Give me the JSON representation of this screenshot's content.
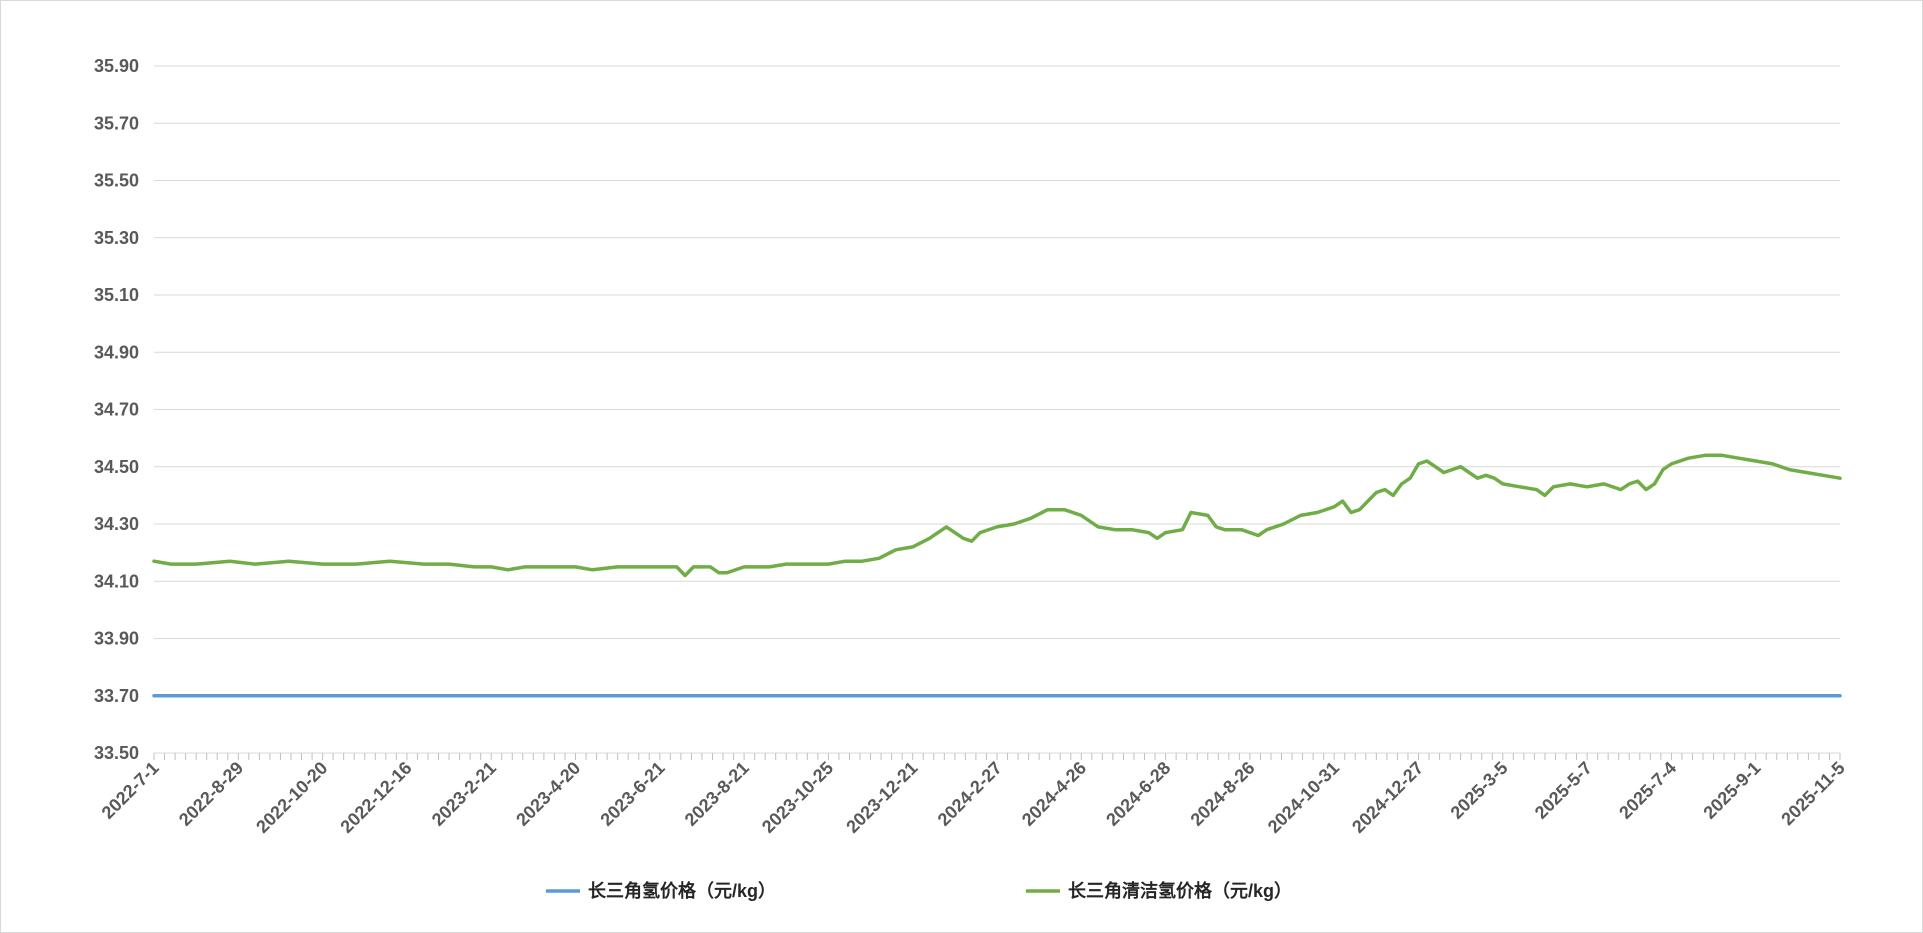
{
  "chart_data": {
    "type": "line",
    "title": "",
    "xlabel": "",
    "ylabel": "",
    "ylim": [
      33.5,
      35.9
    ],
    "y_ticks": [
      "33.50",
      "33.70",
      "33.90",
      "34.10",
      "34.30",
      "34.50",
      "34.70",
      "34.90",
      "35.10",
      "35.30",
      "35.50",
      "35.70",
      "35.90"
    ],
    "x_tick_labels": [
      "2022-7-1",
      "2022-8-29",
      "2022-10-20",
      "2022-12-16",
      "2023-2-21",
      "2023-4-20",
      "2023-6-21",
      "2023-8-21",
      "2023-10-25",
      "2023-12-21",
      "2024-2-27",
      "2024-4-26",
      "2024-6-28",
      "2024-8-26",
      "2024-10-31",
      "2024-12-27",
      "2025-3-5",
      "2025-5-7",
      "2025-7-4",
      "2025-9-1",
      "2025-11-5"
    ],
    "grid": true,
    "legend_position": "bottom",
    "series": [
      {
        "name": "长三角氢价格（元/kg）",
        "color": "#5b9bd5",
        "points": [
          [
            0,
            33.7
          ],
          [
            1,
            33.7
          ]
        ]
      },
      {
        "name": "长三角清洁氢价格（元/kg）",
        "color": "#70ad47",
        "points": [
          [
            0.0,
            34.17
          ],
          [
            0.01,
            34.16
          ],
          [
            0.025,
            34.16
          ],
          [
            0.045,
            34.17
          ],
          [
            0.06,
            34.16
          ],
          [
            0.08,
            34.17
          ],
          [
            0.1,
            34.16
          ],
          [
            0.12,
            34.16
          ],
          [
            0.14,
            34.17
          ],
          [
            0.16,
            34.16
          ],
          [
            0.175,
            34.16
          ],
          [
            0.19,
            34.15
          ],
          [
            0.2,
            34.15
          ],
          [
            0.21,
            34.14
          ],
          [
            0.22,
            34.15
          ],
          [
            0.24,
            34.15
          ],
          [
            0.25,
            34.15
          ],
          [
            0.26,
            34.14
          ],
          [
            0.275,
            34.15
          ],
          [
            0.29,
            34.15
          ],
          [
            0.3,
            34.15
          ],
          [
            0.31,
            34.15
          ],
          [
            0.315,
            34.12
          ],
          [
            0.32,
            34.15
          ],
          [
            0.33,
            34.15
          ],
          [
            0.335,
            34.13
          ],
          [
            0.34,
            34.13
          ],
          [
            0.35,
            34.15
          ],
          [
            0.365,
            34.15
          ],
          [
            0.375,
            34.16
          ],
          [
            0.39,
            34.16
          ],
          [
            0.4,
            34.16
          ],
          [
            0.41,
            34.17
          ],
          [
            0.42,
            34.17
          ],
          [
            0.43,
            34.18
          ],
          [
            0.44,
            34.21
          ],
          [
            0.45,
            34.22
          ],
          [
            0.46,
            34.25
          ],
          [
            0.465,
            34.27
          ],
          [
            0.47,
            34.29
          ],
          [
            0.475,
            34.27
          ],
          [
            0.48,
            34.25
          ],
          [
            0.485,
            34.24
          ],
          [
            0.49,
            34.27
          ],
          [
            0.5,
            34.29
          ],
          [
            0.51,
            34.3
          ],
          [
            0.52,
            34.32
          ],
          [
            0.53,
            34.35
          ],
          [
            0.54,
            34.35
          ],
          [
            0.55,
            34.33
          ],
          [
            0.56,
            34.29
          ],
          [
            0.57,
            34.28
          ],
          [
            0.58,
            34.28
          ],
          [
            0.59,
            34.27
          ],
          [
            0.595,
            34.25
          ],
          [
            0.6,
            34.27
          ],
          [
            0.61,
            34.28
          ],
          [
            0.615,
            34.34
          ],
          [
            0.625,
            34.33
          ],
          [
            0.63,
            34.29
          ],
          [
            0.635,
            34.28
          ],
          [
            0.645,
            34.28
          ],
          [
            0.655,
            34.26
          ],
          [
            0.66,
            34.28
          ],
          [
            0.67,
            34.3
          ],
          [
            0.68,
            34.33
          ],
          [
            0.69,
            34.34
          ],
          [
            0.7,
            34.36
          ],
          [
            0.705,
            34.38
          ],
          [
            0.71,
            34.34
          ],
          [
            0.715,
            34.35
          ],
          [
            0.725,
            34.41
          ],
          [
            0.73,
            34.42
          ],
          [
            0.735,
            34.4
          ],
          [
            0.74,
            34.44
          ],
          [
            0.745,
            34.46
          ],
          [
            0.75,
            34.51
          ],
          [
            0.755,
            34.52
          ],
          [
            0.76,
            34.5
          ],
          [
            0.765,
            34.48
          ],
          [
            0.77,
            34.49
          ],
          [
            0.775,
            34.5
          ],
          [
            0.78,
            34.48
          ],
          [
            0.785,
            34.46
          ],
          [
            0.79,
            34.47
          ],
          [
            0.795,
            34.46
          ],
          [
            0.8,
            34.44
          ],
          [
            0.81,
            34.43
          ],
          [
            0.82,
            34.42
          ],
          [
            0.825,
            34.4
          ],
          [
            0.83,
            34.43
          ],
          [
            0.84,
            34.44
          ],
          [
            0.85,
            34.43
          ],
          [
            0.86,
            34.44
          ],
          [
            0.87,
            34.42
          ],
          [
            0.875,
            34.44
          ],
          [
            0.88,
            34.45
          ],
          [
            0.885,
            34.42
          ],
          [
            0.89,
            34.44
          ],
          [
            0.895,
            34.49
          ],
          [
            0.9,
            34.51
          ],
          [
            0.91,
            34.53
          ],
          [
            0.92,
            34.54
          ],
          [
            0.93,
            34.54
          ],
          [
            0.94,
            34.53
          ],
          [
            0.95,
            34.52
          ],
          [
            0.96,
            34.51
          ],
          [
            0.97,
            34.49
          ],
          [
            0.98,
            34.48
          ],
          [
            0.99,
            34.47
          ],
          [
            1.0,
            34.46
          ]
        ]
      }
    ]
  }
}
